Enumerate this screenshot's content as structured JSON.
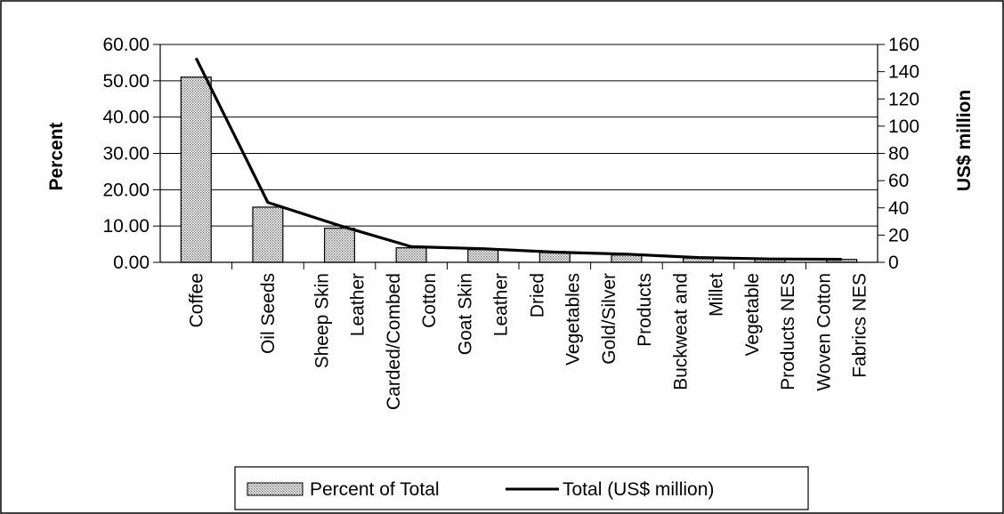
{
  "chart_data": {
    "type": "bar",
    "categories": [
      "Coffee",
      "Oil Seeds",
      "Sheep Skin\nLeather",
      "Carded/Combed\nCotton",
      "Goat Skin\nLeather",
      "Dried\nVegetables",
      "Gold/Silver\nProducts",
      "Buckweat and\nMillet",
      "Vegetable\nProducts NES",
      "Woven Cotton\nFabrics NES"
    ],
    "series": [
      {
        "name": "Percent of Total",
        "type": "bar",
        "axis": "left",
        "values": [
          51.0,
          15.2,
          9.4,
          4.0,
          3.5,
          2.7,
          2.0,
          1.2,
          0.9,
          0.8
        ],
        "pattern": "dotted"
      },
      {
        "name": "Total (US$ million)",
        "type": "line",
        "axis": "right",
        "values": [
          150,
          44,
          27,
          11.5,
          10,
          7.5,
          6,
          3.5,
          2.5,
          2.2
        ],
        "color": "#000000"
      }
    ],
    "y_left": {
      "label": "Percent",
      "ticks": [
        "60.00",
        "50.00",
        "40.00",
        "30.00",
        "20.00",
        "10.00",
        "0.00"
      ],
      "lim": [
        0,
        60
      ]
    },
    "y_right": {
      "label": "US$ million",
      "ticks": [
        "160",
        "140",
        "120",
        "100",
        "80",
        "60",
        "40",
        "20",
        "0"
      ],
      "lim": [
        0,
        160
      ]
    },
    "grid": true,
    "legend": "bottom"
  }
}
